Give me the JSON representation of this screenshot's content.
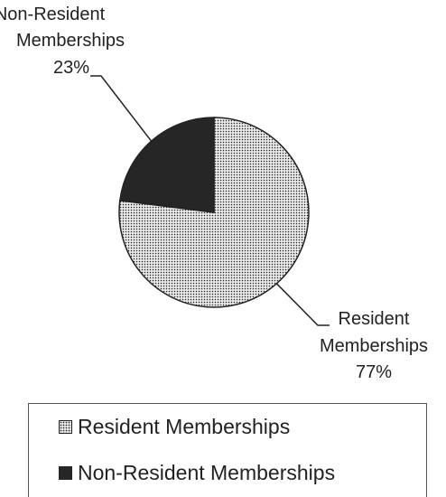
{
  "chart_data": {
    "type": "pie",
    "categories": [
      "Resident Memberships",
      "Non-Resident Memberships"
    ],
    "values": [
      77,
      23
    ],
    "unit": "%",
    "slice_labels": [
      {
        "name_lines": [
          "Resident",
          "Memberships"
        ],
        "percent": "77%"
      },
      {
        "name_lines": [
          "Non-Resident",
          "Memberships"
        ],
        "percent": "23%"
      }
    ],
    "colors": [
      "#e0e0e0",
      "#262626"
    ],
    "patterns": [
      "dotted",
      "solid"
    ],
    "legend": {
      "placement": "bottom",
      "entries": [
        "Resident Memberships",
        "Non-Resident Memberships"
      ]
    }
  }
}
